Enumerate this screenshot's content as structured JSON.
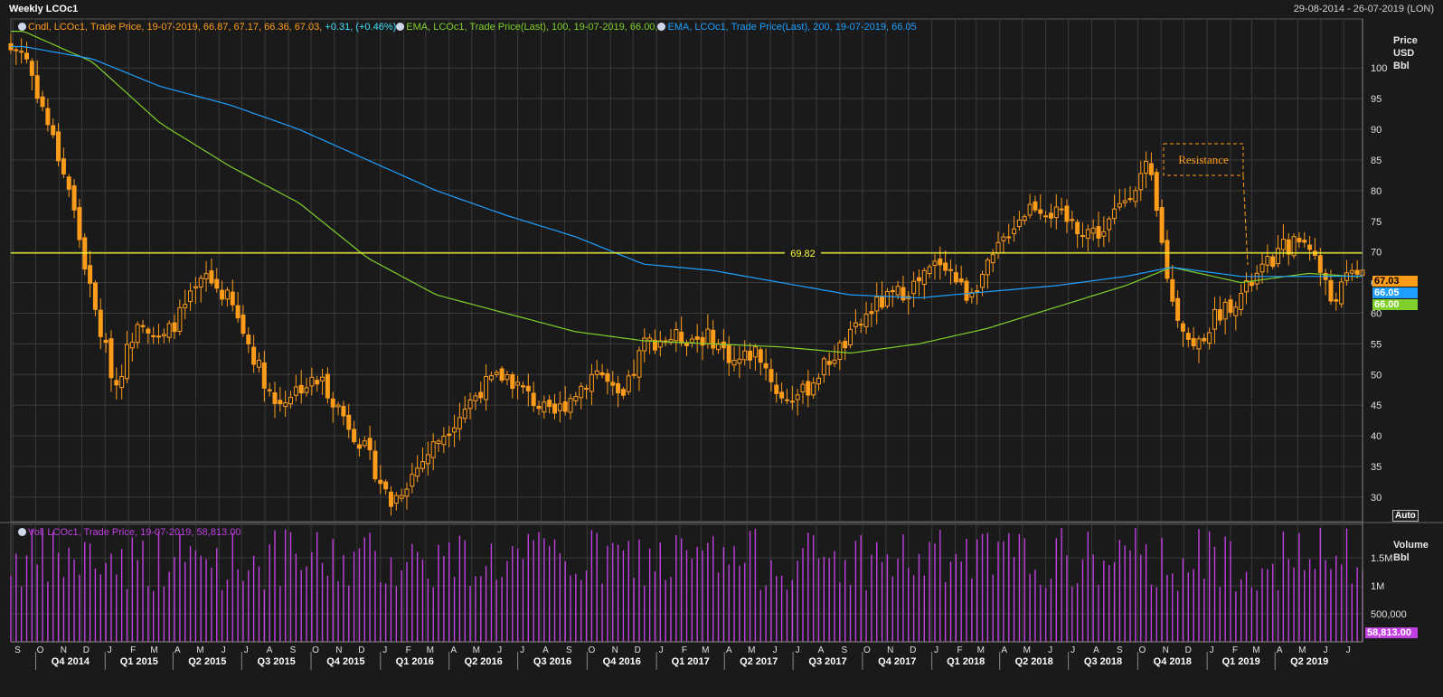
{
  "header": {
    "title": "Weekly LCOc1",
    "range": "29-08-2014 - 26-07-2019 (LON)"
  },
  "legend_price": {
    "candle": "Cndl, LCOc1, Trade Price,  19-07-2019, 66.87, 67.17, 66.36, 67.03,",
    "candle_change": "+0.31, (+0.46%)",
    "ema100": "EMA, LCOc1, Trade Price(Last),  100,  19-07-2019, 66.00,",
    "ema200": "EMA, LCOc1, Trade Price(Last),  200,  19-07-2019, 66.05"
  },
  "legend_volume": {
    "text": "Vol, LCOc1, Trade Price,  19-07-2019, 58,813.00"
  },
  "price_axis": {
    "title": [
      "Price",
      "USD",
      "Bbl"
    ],
    "auto_label": "Auto"
  },
  "volume_axis": {
    "title": [
      "Volume",
      "Bbl"
    ]
  },
  "annotations": {
    "resistance_label": "Resistance",
    "hline_label": "69.82"
  },
  "last_value_tags": {
    "close": "67.03",
    "ema200": "66.05",
    "ema100": "66.00",
    "volume": "58,813.00"
  },
  "colors": {
    "candle": "#ff9c1a",
    "ema100": "#7fd02a",
    "ema200": "#1e9fff",
    "hline": "#ffff33",
    "volume": "#c040e0",
    "grid": "#3a3a3a",
    "axis_text": "#e0e0e0"
  },
  "chart_data": [
    {
      "type": "candlestick",
      "title": "Weekly LCOc1",
      "ylabel": "Price USD Bbl",
      "ylim": [
        26,
        108
      ],
      "yticks": [
        30,
        35,
        40,
        45,
        50,
        55,
        60,
        65,
        70,
        75,
        80,
        85,
        90,
        95,
        100
      ],
      "x_month_labels": [
        "S",
        "O",
        "N",
        "D",
        "J",
        "F",
        "M",
        "A",
        "M",
        "J",
        "J",
        "A",
        "S",
        "O",
        "N",
        "D",
        "J",
        "F",
        "M",
        "A",
        "M",
        "J",
        "J",
        "A",
        "S",
        "O",
        "N",
        "D",
        "J",
        "F",
        "M",
        "A",
        "M",
        "J",
        "J",
        "A",
        "S",
        "O",
        "N",
        "D",
        "J",
        "F",
        "M",
        "A",
        "M",
        "J",
        "J",
        "A",
        "S",
        "O",
        "N",
        "D",
        "J",
        "F",
        "M",
        "A",
        "M",
        "J",
        "J"
      ],
      "x_quarter_labels": [
        "Q4 2014",
        "Q1 2015",
        "Q2 2015",
        "Q3 2015",
        "Q4 2015",
        "Q1 2016",
        "Q2 2016",
        "Q3 2016",
        "Q4 2016",
        "Q1 2017",
        "Q2 2017",
        "Q3 2017",
        "Q4 2017",
        "Q1 2018",
        "Q2 2018",
        "Q3 2018",
        "Q4 2018",
        "Q1 2019",
        "Q2 2019"
      ],
      "close_key_points": [
        {
          "date": "2014-09",
          "value": 103
        },
        {
          "date": "2014-11",
          "value": 80
        },
        {
          "date": "2014-12",
          "value": 62
        },
        {
          "date": "2015-01",
          "value": 48
        },
        {
          "date": "2015-02",
          "value": 60
        },
        {
          "date": "2015-03",
          "value": 55
        },
        {
          "date": "2015-05",
          "value": 66
        },
        {
          "date": "2015-06",
          "value": 62
        },
        {
          "date": "2015-08",
          "value": 45
        },
        {
          "date": "2015-09",
          "value": 48
        },
        {
          "date": "2015-10",
          "value": 49
        },
        {
          "date": "2015-12",
          "value": 37
        },
        {
          "date": "2016-01",
          "value": 29
        },
        {
          "date": "2016-03",
          "value": 39
        },
        {
          "date": "2016-05",
          "value": 48
        },
        {
          "date": "2016-06",
          "value": 50
        },
        {
          "date": "2016-08",
          "value": 43
        },
        {
          "date": "2016-10",
          "value": 51
        },
        {
          "date": "2016-11",
          "value": 45
        },
        {
          "date": "2016-12",
          "value": 55
        },
        {
          "date": "2017-01",
          "value": 56
        },
        {
          "date": "2017-03",
          "value": 56
        },
        {
          "date": "2017-04",
          "value": 52
        },
        {
          "date": "2017-05",
          "value": 54
        },
        {
          "date": "2017-06",
          "value": 46
        },
        {
          "date": "2017-07",
          "value": 47
        },
        {
          "date": "2017-08",
          "value": 52
        },
        {
          "date": "2017-09",
          "value": 56
        },
        {
          "date": "2017-10",
          "value": 61
        },
        {
          "date": "2017-12",
          "value": 65
        },
        {
          "date": "2018-01",
          "value": 69
        },
        {
          "date": "2018-02",
          "value": 63
        },
        {
          "date": "2018-03",
          "value": 67
        },
        {
          "date": "2018-04",
          "value": 74
        },
        {
          "date": "2018-05",
          "value": 78
        },
        {
          "date": "2018-06",
          "value": 76
        },
        {
          "date": "2018-07",
          "value": 74
        },
        {
          "date": "2018-08",
          "value": 73
        },
        {
          "date": "2018-09",
          "value": 79
        },
        {
          "date": "2018-10",
          "value": 84
        },
        {
          "date": "2018-11",
          "value": 62
        },
        {
          "date": "2018-12",
          "value": 54
        },
        {
          "date": "2019-01",
          "value": 60
        },
        {
          "date": "2019-02",
          "value": 63
        },
        {
          "date": "2019-03",
          "value": 67
        },
        {
          "date": "2019-04",
          "value": 71
        },
        {
          "date": "2019-05",
          "value": 72
        },
        {
          "date": "2019-06",
          "value": 62
        },
        {
          "date": "2019-07",
          "value": 67.03
        }
      ],
      "last_candle": {
        "date": "2019-07-19",
        "open": 66.87,
        "high": 67.17,
        "low": 66.36,
        "close": 67.03,
        "change": 0.31,
        "change_pct": 0.46
      },
      "series": [
        {
          "name": "EMA, LCOc1, Trade Price(Last), 100",
          "key_points": [
            {
              "date": "2014-09",
              "value": 106
            },
            {
              "date": "2014-12",
              "value": 101
            },
            {
              "date": "2015-03",
              "value": 91
            },
            {
              "date": "2015-06",
              "value": 84
            },
            {
              "date": "2015-09",
              "value": 78
            },
            {
              "date": "2015-12",
              "value": 69
            },
            {
              "date": "2016-03",
              "value": 63
            },
            {
              "date": "2016-06",
              "value": 60
            },
            {
              "date": "2016-09",
              "value": 57
            },
            {
              "date": "2016-12",
              "value": 55.5
            },
            {
              "date": "2017-03",
              "value": 55
            },
            {
              "date": "2017-06",
              "value": 54.5
            },
            {
              "date": "2017-09",
              "value": 53.5
            },
            {
              "date": "2017-12",
              "value": 55
            },
            {
              "date": "2018-03",
              "value": 57.5
            },
            {
              "date": "2018-06",
              "value": 61
            },
            {
              "date": "2018-09",
              "value": 64.5
            },
            {
              "date": "2018-11",
              "value": 67.5
            },
            {
              "date": "2019-02",
              "value": 65
            },
            {
              "date": "2019-05",
              "value": 66.5
            },
            {
              "date": "2019-07",
              "value": 66.0
            }
          ]
        },
        {
          "name": "EMA, LCOc1, Trade Price(Last), 200",
          "key_points": [
            {
              "date": "2014-09",
              "value": 103.5
            },
            {
              "date": "2014-12",
              "value": 101.5
            },
            {
              "date": "2015-03",
              "value": 97
            },
            {
              "date": "2015-06",
              "value": 94
            },
            {
              "date": "2015-09",
              "value": 90
            },
            {
              "date": "2015-12",
              "value": 85
            },
            {
              "date": "2016-03",
              "value": 80
            },
            {
              "date": "2016-06",
              "value": 76
            },
            {
              "date": "2016-09",
              "value": 72.5
            },
            {
              "date": "2016-12",
              "value": 68
            },
            {
              "date": "2017-03",
              "value": 67
            },
            {
              "date": "2017-06",
              "value": 65
            },
            {
              "date": "2017-09",
              "value": 63
            },
            {
              "date": "2017-12",
              "value": 62.5
            },
            {
              "date": "2018-03",
              "value": 63.5
            },
            {
              "date": "2018-06",
              "value": 64.5
            },
            {
              "date": "2018-09",
              "value": 66
            },
            {
              "date": "2018-11",
              "value": 67.5
            },
            {
              "date": "2019-02",
              "value": 66
            },
            {
              "date": "2019-05",
              "value": 66
            },
            {
              "date": "2019-07",
              "value": 66.05
            }
          ]
        }
      ],
      "hlines": [
        {
          "value": 69.82,
          "label": "69.82"
        }
      ],
      "annotations": [
        {
          "text": "Resistance",
          "type": "dashed box with dashed leader",
          "near_date": "2018-12",
          "near_value": 88
        }
      ]
    },
    {
      "type": "bar",
      "title": "Vol, LCOc1, Trade Price",
      "ylabel": "Volume Bbl",
      "yticks": [
        500000,
        1000000,
        1500000
      ],
      "ytick_labels": [
        "500,000",
        "1M",
        "1.5M"
      ],
      "ylim": [
        0,
        2100000
      ],
      "approx_range": [
        900000,
        2050000
      ],
      "last_value": {
        "date": "2019-07-19",
        "value": 58813.0
      }
    }
  ]
}
